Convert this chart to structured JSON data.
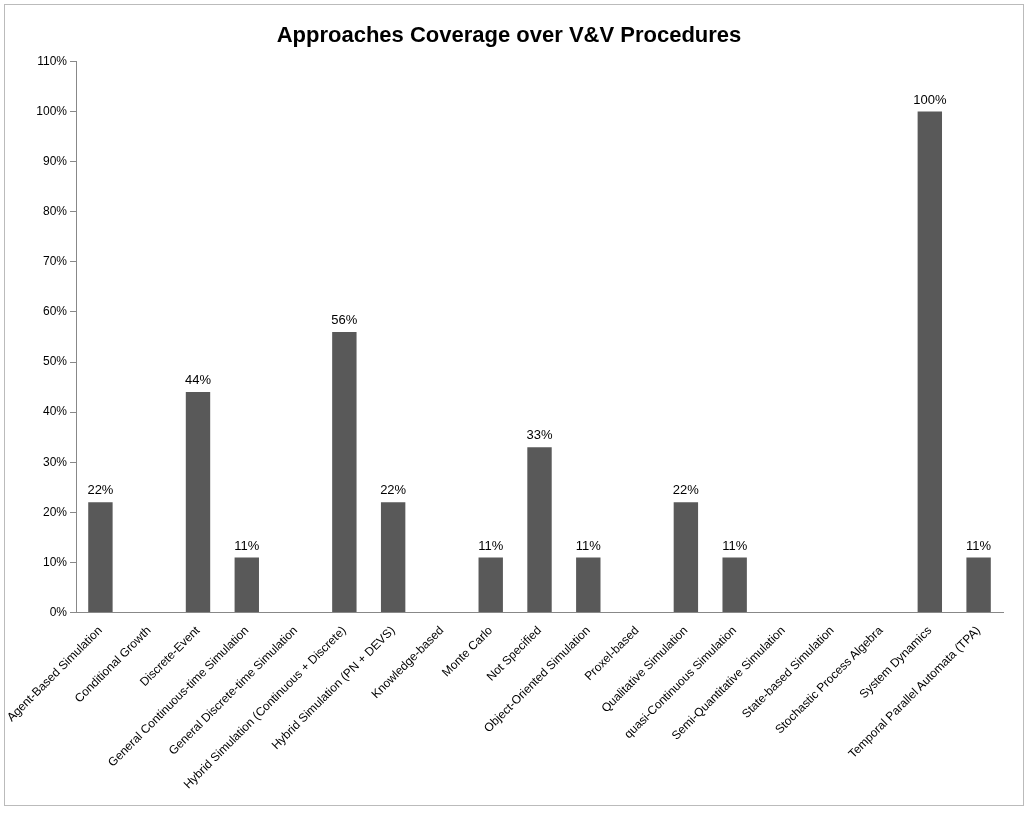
{
  "chart_data": {
    "type": "bar",
    "title": "Approaches Coverage over V&V Procedures",
    "categories": [
      "Agent-Based Simulation",
      "Conditional Growth",
      "Discrete-Event",
      "General Continuous-time Simulation",
      "General Discrete-time Simulation",
      "Hybrid Simulation (Continuous + Discrete)",
      "Hybrid Simulation (PN + DEVS)",
      "Knowledge-based",
      "Monte Carlo",
      "Not Specified",
      "Object-Oriented Simulation",
      "Proxel-based",
      "Qualitative Simulation",
      "quasi-Continuous Simulation",
      "Semi-Quantitative Simulation",
      "State-based Simulation",
      "Stochastic Process Algebra",
      "System Dynamics",
      "Temporal Parallel Automata (TPA)"
    ],
    "values": [
      22,
      0,
      44,
      11,
      0,
      56,
      22,
      0,
      11,
      33,
      11,
      0,
      22,
      11,
      0,
      0,
      0,
      100,
      11
    ],
    "value_labels": [
      "22%",
      null,
      "44%",
      "11%",
      null,
      "56%",
      "22%",
      null,
      "11%",
      "33%",
      "11%",
      null,
      "22%",
      "11%",
      null,
      null,
      null,
      "100%",
      "11%"
    ],
    "color": "#595959",
    "ylim": [
      0,
      110
    ],
    "yticks": [
      {
        "value": 0,
        "label": "0%"
      },
      {
        "value": 10,
        "label": "10%"
      },
      {
        "value": 20,
        "label": "20%"
      },
      {
        "value": 30,
        "label": "30%"
      },
      {
        "value": 40,
        "label": "40%"
      },
      {
        "value": 50,
        "label": "50%"
      },
      {
        "value": 60,
        "label": "60%"
      },
      {
        "value": 70,
        "label": "70%"
      },
      {
        "value": 80,
        "label": "80%"
      },
      {
        "value": 90,
        "label": "90%"
      },
      {
        "value": 100,
        "label": "100%"
      },
      {
        "value": 110,
        "label": "110%"
      }
    ]
  }
}
